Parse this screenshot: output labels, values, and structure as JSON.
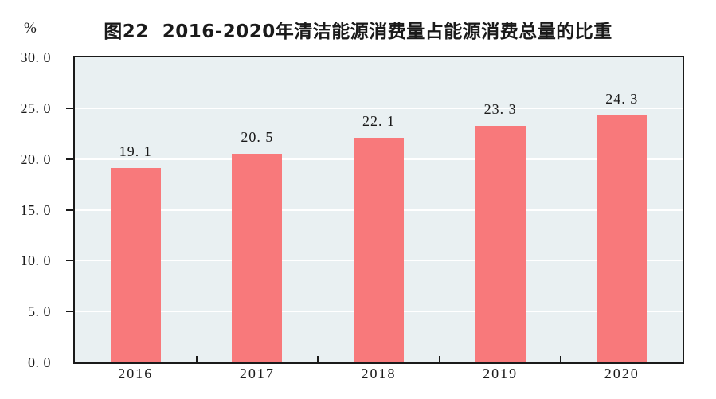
{
  "figure": {
    "title": "图22  2016-2020年清洁能源消费量占能源消费总量的比重",
    "unit_label": "%"
  },
  "chart_data": {
    "type": "bar",
    "title": "图22  2016-2020年清洁能源消费量占能源消费总量的比重",
    "unit_label": "%",
    "categories": [
      "2016",
      "2017",
      "2018",
      "2019",
      "2020"
    ],
    "values": [
      19.1,
      20.5,
      22.1,
      23.3,
      24.3
    ],
    "value_labels": [
      "19. 1",
      "20. 5",
      "22. 1",
      "23. 3",
      "24. 3"
    ],
    "xlabel": "",
    "ylabel": "%",
    "ylim": [
      0,
      30
    ],
    "ytick_step": 5,
    "ytick_labels": [
      "0. 0",
      "5. 0",
      "10. 0",
      "15. 0",
      "20. 0",
      "25. 0",
      "30. 0"
    ],
    "grid": true,
    "legend_position": "none",
    "colors": {
      "bar_fill": "#F8797B",
      "plot_background": "#E9F0F2",
      "gridline": "#FFFFFF",
      "axis": "#1A1A1A",
      "text": "#1A1A1A",
      "page_background": "#FFFFFF"
    }
  }
}
